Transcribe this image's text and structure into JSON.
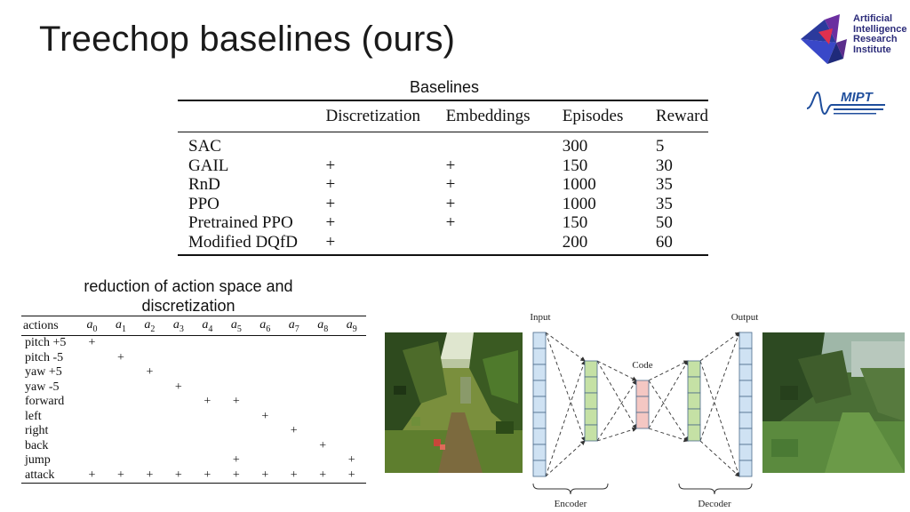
{
  "slide": {
    "title": "Treechop baselines (ours)"
  },
  "logos": {
    "airi_text": [
      "Artificial",
      "Intelligence",
      "Research",
      "Institute"
    ],
    "mipt_text": "MIPT"
  },
  "baselines": {
    "caption": "Baselines",
    "columns": [
      "",
      "Discretization",
      "Embeddings",
      "Episodes",
      "Reward"
    ],
    "rows": [
      [
        "SAC",
        "",
        "",
        "300",
        "5"
      ],
      [
        "GAIL",
        "+",
        "+",
        "150",
        "30"
      ],
      [
        "RnD",
        "+",
        "+",
        "1000",
        "35"
      ],
      [
        "PPO",
        "+",
        "+",
        "1000",
        "35"
      ],
      [
        "Pretrained PPO",
        "+",
        "+",
        "150",
        "50"
      ],
      [
        "Modified DQfD",
        "+",
        "",
        "200",
        "60"
      ]
    ]
  },
  "actions_table": {
    "caption": "reduction of action space and discretization",
    "header_label": "actions",
    "columns": [
      "a",
      "a",
      "a",
      "a",
      "a",
      "a",
      "a",
      "a",
      "a",
      "a"
    ],
    "subscripts": [
      "0",
      "1",
      "2",
      "3",
      "4",
      "5",
      "6",
      "7",
      "8",
      "9"
    ],
    "rows": [
      {
        "name": "pitch +5",
        "marks": [
          "+",
          "",
          "",
          "",
          "",
          "",
          "",
          "",
          "",
          ""
        ]
      },
      {
        "name": "pitch -5",
        "marks": [
          "",
          "+",
          "",
          "",
          "",
          "",
          "",
          "",
          "",
          ""
        ]
      },
      {
        "name": "yaw +5",
        "marks": [
          "",
          "",
          "+",
          "",
          "",
          "",
          "",
          "",
          "",
          ""
        ]
      },
      {
        "name": "yaw -5",
        "marks": [
          "",
          "",
          "",
          "+",
          "",
          "",
          "",
          "",
          "",
          ""
        ]
      },
      {
        "name": "forward",
        "marks": [
          "",
          "",
          "",
          "",
          "+",
          "+",
          "",
          "",
          "",
          ""
        ]
      },
      {
        "name": "left",
        "marks": [
          "",
          "",
          "",
          "",
          "",
          "",
          "+",
          "",
          "",
          ""
        ]
      },
      {
        "name": "right",
        "marks": [
          "",
          "",
          "",
          "",
          "",
          "",
          "",
          "+",
          "",
          ""
        ]
      },
      {
        "name": "back",
        "marks": [
          "",
          "",
          "",
          "",
          "",
          "",
          "",
          "",
          "+",
          ""
        ]
      },
      {
        "name": "jump",
        "marks": [
          "",
          "",
          "",
          "",
          "",
          "+",
          "",
          "",
          "",
          "+"
        ]
      },
      {
        "name": "attack",
        "marks": [
          "+",
          "+",
          "+",
          "+",
          "+",
          "+",
          "+",
          "+",
          "+",
          "+"
        ]
      }
    ]
  },
  "autoencoder": {
    "input_label": "Input",
    "output_label": "Output",
    "code_label": "Code",
    "encoder_label": "Encoder",
    "decoder_label": "Decoder",
    "colors": {
      "io_cells": "#cfe2f3",
      "hidden_cells": "#c5e1a5",
      "code_cells": "#f4c7c3"
    }
  },
  "images": {
    "input_frame": "minecraft-forest-frame",
    "output_frame": "reconstructed-blurry-frame"
  }
}
